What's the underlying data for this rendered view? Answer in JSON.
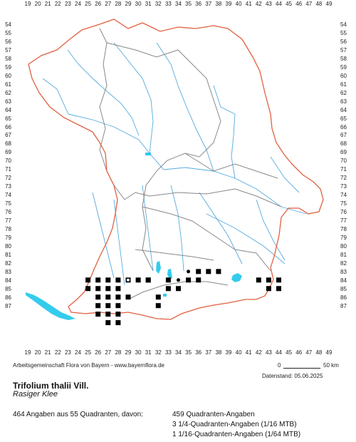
{
  "map": {
    "x_ticks": [
      "19",
      "20",
      "21",
      "22",
      "23",
      "24",
      "25",
      "26",
      "27",
      "28",
      "29",
      "30",
      "31",
      "32",
      "33",
      "34",
      "35",
      "36",
      "37",
      "38",
      "39",
      "40",
      "41",
      "42",
      "43",
      "44",
      "45",
      "46",
      "47",
      "48",
      "49"
    ],
    "y_ticks": [
      "54",
      "55",
      "56",
      "57",
      "58",
      "59",
      "60",
      "61",
      "62",
      "63",
      "64",
      "65",
      "66",
      "67",
      "68",
      "69",
      "70",
      "71",
      "72",
      "73",
      "74",
      "75",
      "76",
      "77",
      "78",
      "79",
      "80",
      "81",
      "82",
      "83",
      "84",
      "85",
      "86",
      "87"
    ],
    "colors": {
      "border": "#e06040",
      "district_borders": "#888888",
      "rivers": "#55aadd",
      "lakes": "#33ccee",
      "markers": "#000000"
    },
    "occurrence_squares": [
      [
        25,
        84
      ],
      [
        26,
        84
      ],
      [
        27,
        84
      ],
      [
        28,
        84
      ],
      [
        29,
        84
      ],
      [
        30,
        84
      ],
      [
        31,
        84
      ],
      [
        33,
        84
      ],
      [
        35,
        84
      ],
      [
        36,
        84
      ],
      [
        42,
        84
      ],
      [
        43,
        84
      ],
      [
        44,
        84
      ],
      [
        25,
        85
      ],
      [
        26,
        85
      ],
      [
        27,
        85
      ],
      [
        28,
        85
      ],
      [
        33,
        85
      ],
      [
        34,
        85
      ],
      [
        44,
        85
      ],
      [
        26,
        86
      ],
      [
        27,
        86
      ],
      [
        28,
        86
      ],
      [
        29,
        86
      ],
      [
        32,
        86
      ],
      [
        26,
        87
      ],
      [
        27,
        87
      ],
      [
        28,
        87
      ],
      [
        32,
        87
      ],
      [
        26,
        88
      ],
      [
        27,
        88
      ],
      [
        28,
        88
      ],
      [
        27,
        89
      ],
      [
        28,
        89
      ],
      [
        31,
        84
      ],
      [
        37,
        83
      ],
      [
        38,
        83
      ],
      [
        36,
        83
      ],
      [
        43,
        85
      ]
    ],
    "occurrence_dots": [
      [
        34,
        84
      ],
      [
        35,
        83
      ]
    ],
    "occurrence_open": [
      [
        29,
        84
      ]
    ]
  },
  "footer": {
    "credit": "Arbeitsgemeinschaft Flora von Bayern - www.bayernflora.de",
    "scale_zero": "0",
    "scale_label": "50 km",
    "date": "Datenstand: 05.06.2025"
  },
  "species": {
    "name": "Trifolium thalii Vill.",
    "common": "Rasiger Klee"
  },
  "stats": {
    "total": "464 Angaben aus 55 Quadranten, davon:",
    "line1": "459 Quadranten-Angaben",
    "line2": "3 1/4-Quadranten-Angaben (1/16 MTB)",
    "line3": "1 1/16-Quadranten-Angaben (1/64 MTB)"
  }
}
